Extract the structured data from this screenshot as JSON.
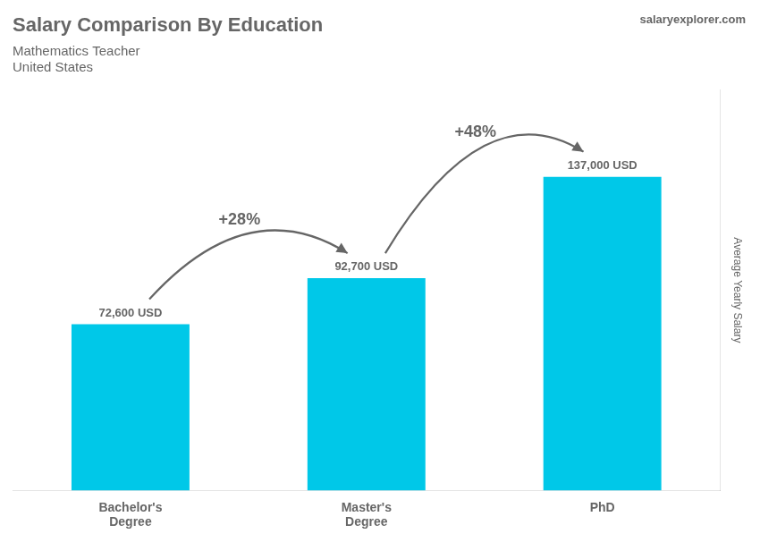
{
  "chart_data": {
    "type": "bar",
    "title": "Salary Comparison By Education",
    "subtitle": "Mathematics Teacher",
    "ylabel": "Average Yearly Salary",
    "categories": [
      "Bachelor's\nDegree",
      "Master's\nDegree",
      "PhD"
    ],
    "values": [
      72600,
      92700,
      137000
    ],
    "value_labels": [
      "72,600 USD",
      "92,700 USD",
      "137,000 USD"
    ],
    "data_labels": true,
    "color": "#00c8e8",
    "ylim": [
      0,
      175000
    ],
    "grid": false,
    "tick_labels": "x",
    "annotations": [
      "+28%",
      "+48%",
      "United States",
      "salaryexplorer.com"
    ]
  }
}
